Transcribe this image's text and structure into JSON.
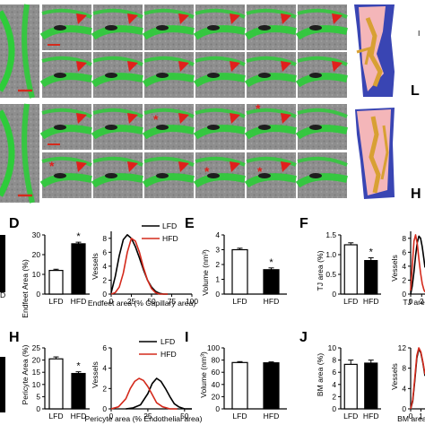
{
  "panel_letters": {
    "l": "L",
    "h": "H",
    "D": "D",
    "E": "E",
    "F": "F",
    "H": "H",
    "I": "I",
    "J": "J",
    "frag_top": "I"
  },
  "colors": {
    "em_bg": "#8d8d8d",
    "membrane_green": "#2ecc3a",
    "arrow_red": "#e0201c",
    "recon_pink": "#f4b6b9",
    "recon_gold": "#d8a033",
    "recon_blue": "#3945b3",
    "hfd_red": "#d42a1c",
    "lfd_black": "#000000"
  },
  "markers": {
    "asterisk": "*"
  },
  "shared": {
    "cat_lfd": "LFD",
    "cat_hfd": "HFD",
    "legend_lfd": "LFD",
    "legend_hfd": "HFD",
    "star": "*"
  },
  "panelD": {
    "ylabel": "Endfeet Area (%)",
    "ticks": [
      "30",
      "20",
      "10",
      "0"
    ],
    "curve_ylabel": "Vessels",
    "curve_xlabel": "Endfeet area (% Capillary area)",
    "curve_yticks": [
      "8",
      "6",
      "4",
      "2",
      "0"
    ],
    "curve_xticks": [
      "0",
      "25",
      "50",
      "75",
      "100"
    ]
  },
  "panelE": {
    "ylabel": "Volume (nm³)",
    "ticks": [
      "4",
      "3",
      "2",
      "1",
      "0"
    ]
  },
  "panelF": {
    "ylabel": "TJ area (%)",
    "ticks": [
      "1.5",
      "1.0",
      "0.5",
      "0"
    ],
    "curve_ylabel": "Vessels",
    "curve_xlabel": "TJ area",
    "curve_yticks": [
      "8",
      "6",
      "4",
      "2",
      "0"
    ],
    "curve_xticks": [
      "0",
      "2"
    ]
  },
  "panelH": {
    "ylabel": "Pericyte Area (%)",
    "ticks": [
      "25",
      "20",
      "15",
      "10",
      "5",
      "0"
    ],
    "curve_ylabel": "Vessels",
    "curve_xlabel": "Pericyte area (% Endothelial area)",
    "curve_yticks": [
      "6",
      "4",
      "2",
      "0"
    ],
    "curve_xticks": [
      "0",
      "25",
      "50"
    ]
  },
  "panelI": {
    "ylabel": "Volume (nm³)",
    "ticks": [
      "100",
      "80",
      "60",
      "40",
      "20",
      "0"
    ]
  },
  "panelJ": {
    "ylabel": "BM area (%)",
    "ticks": [
      "10",
      "8",
      "6",
      "4",
      "2",
      "0"
    ],
    "curve_ylabel": "Vessels",
    "curve_xlabel": "BM area (",
    "curve_yticks": [
      "12",
      "8",
      "4",
      "0"
    ],
    "curve_xticks": [
      "0",
      "1"
    ]
  },
  "left_fragment": {
    "bottom_letter": "D"
  },
  "chart_data": [
    {
      "type": "bar",
      "id": "D-bar",
      "categories": [
        "LFD",
        "HFD"
      ],
      "values": [
        12,
        25.5
      ],
      "errors": [
        0.6,
        0.8
      ],
      "ylabel": "Endfeet Area (%)",
      "ylim": [
        0,
        30
      ],
      "significance": "*"
    },
    {
      "type": "line",
      "id": "D-dist",
      "xlabel": "Endfeet area (% Capillary area)",
      "ylabel": "Vessels",
      "xlim": [
        0,
        100
      ],
      "ylim": [
        0,
        9
      ],
      "series": [
        {
          "name": "LFD",
          "x": [
            0,
            5,
            10,
            15,
            20,
            25,
            30,
            35,
            40,
            45,
            50,
            55,
            60,
            65,
            70
          ],
          "y": [
            0.2,
            2.5,
            5.5,
            7.8,
            8.5,
            8.0,
            6.8,
            5.2,
            3.5,
            2.0,
            1.0,
            0.4,
            0.1,
            0,
            0
          ]
        },
        {
          "name": "HFD",
          "x": [
            0,
            5,
            10,
            15,
            20,
            25,
            30,
            35,
            40,
            45,
            50,
            55,
            60,
            65,
            70
          ],
          "y": [
            0,
            0.2,
            1.0,
            3.0,
            6.0,
            8.0,
            7.6,
            6.0,
            3.8,
            2.0,
            0.8,
            0.2,
            0,
            0,
            0
          ]
        }
      ]
    },
    {
      "type": "bar",
      "id": "E-bar",
      "categories": [
        "LFD",
        "HFD"
      ],
      "values": [
        3.0,
        1.65
      ],
      "errors": [
        0.1,
        0.12
      ],
      "ylabel": "Volume (nm³)",
      "ylim": [
        0,
        4
      ],
      "significance": "*"
    },
    {
      "type": "bar",
      "id": "F-bar",
      "categories": [
        "LFD",
        "HFD"
      ],
      "values": [
        1.25,
        0.85
      ],
      "errors": [
        0.05,
        0.07
      ],
      "ylabel": "TJ area (%)",
      "ylim": [
        0,
        1.5
      ],
      "significance": "*"
    },
    {
      "type": "line",
      "id": "F-dist",
      "xlabel": "TJ area",
      "ylabel": "Vessels",
      "xlim": [
        0,
        2.6
      ],
      "ylim": [
        0,
        9
      ],
      "series": [
        {
          "name": "LFD",
          "x": [
            0,
            0.3,
            0.6,
            0.9,
            1.2,
            1.5,
            1.8,
            2.1,
            2.4,
            2.6
          ],
          "y": [
            0,
            1.2,
            3.2,
            5.5,
            7.4,
            8.3,
            8.0,
            6.8,
            5.0,
            3.8
          ]
        },
        {
          "name": "HFD",
          "x": [
            0,
            0.3,
            0.6,
            0.9,
            1.2,
            1.5,
            1.8,
            2.1,
            2.4,
            2.6
          ],
          "y": [
            0.5,
            4.0,
            7.6,
            8.5,
            7.2,
            5.0,
            3.0,
            1.5,
            0.6,
            0.3
          ]
        }
      ]
    },
    {
      "type": "bar",
      "id": "H-bar",
      "categories": [
        "LFD",
        "HFD"
      ],
      "values": [
        20.5,
        14.5
      ],
      "errors": [
        0.8,
        0.7
      ],
      "ylabel": "Pericyte Area (%)",
      "ylim": [
        0,
        25
      ],
      "significance": "*"
    },
    {
      "type": "line",
      "id": "H-dist",
      "xlabel": "Pericyte area (% Endothelial area)",
      "ylabel": "Vessels",
      "xlim": [
        0,
        55
      ],
      "ylim": [
        0,
        6
      ],
      "series": [
        {
          "name": "LFD",
          "x": [
            10,
            15,
            20,
            25,
            28,
            31,
            34,
            37,
            40,
            43,
            46,
            50,
            55
          ],
          "y": [
            0,
            0.1,
            0.4,
            1.5,
            2.5,
            3.0,
            2.7,
            2.0,
            1.2,
            0.5,
            0.2,
            0,
            0
          ]
        },
        {
          "name": "HFD",
          "x": [
            0,
            5,
            10,
            13,
            16,
            19,
            22,
            25,
            28,
            31,
            35,
            40,
            45
          ],
          "y": [
            0,
            0.2,
            1.0,
            2.0,
            2.7,
            3.0,
            2.8,
            2.2,
            1.4,
            0.6,
            0.2,
            0,
            0
          ]
        }
      ]
    },
    {
      "type": "bar",
      "id": "I-bar",
      "categories": [
        "LFD",
        "HFD"
      ],
      "values": [
        76,
        75.5
      ],
      "errors": [
        1.5,
        1.5
      ],
      "ylabel": "Volume (nm³)",
      "ylim": [
        0,
        100
      ]
    },
    {
      "type": "bar",
      "id": "J-bar",
      "categories": [
        "LFD",
        "HFD"
      ],
      "values": [
        7.3,
        7.5
      ],
      "errors": [
        0.7,
        0.5
      ],
      "ylabel": "BM area (%)",
      "ylim": [
        0,
        10
      ]
    },
    {
      "type": "line",
      "id": "J-dist",
      "xlabel": "BM area (",
      "ylabel": "Vessels",
      "xlim": [
        0,
        1.4
      ],
      "ylim": [
        0,
        12
      ],
      "series": [
        {
          "name": "LFD",
          "x": [
            0,
            0.2,
            0.4,
            0.6,
            0.8,
            1.0,
            1.2,
            1.4
          ],
          "y": [
            0,
            1.5,
            5.5,
            10.0,
            11.8,
            11.0,
            9.0,
            6.5
          ]
        },
        {
          "name": "HFD",
          "x": [
            0,
            0.2,
            0.4,
            0.6,
            0.8,
            1.0,
            1.2,
            1.4
          ],
          "y": [
            0,
            1.8,
            6.0,
            10.5,
            12.0,
            11.2,
            9.2,
            6.8
          ]
        }
      ]
    }
  ]
}
